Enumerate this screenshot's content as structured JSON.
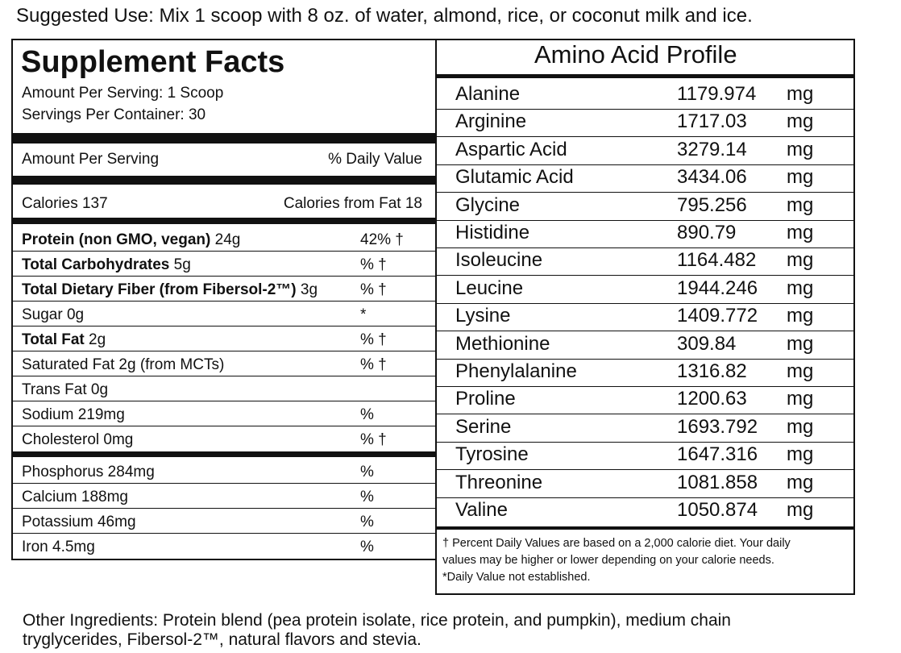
{
  "suggested_use": "Suggested Use: Mix 1 scoop with 8 oz. of water, almond, rice, or coconut milk and ice.",
  "supplement_facts": {
    "title": "Supplement Facts",
    "serving_lines": [
      "Amount Per Serving: 1 Scoop",
      "Servings Per Container: 30"
    ],
    "header": {
      "left": "Amount Per Serving",
      "right": "% Daily Value"
    },
    "calories": {
      "left": "Calories 137",
      "right": "Calories from Fat 18"
    },
    "rows": [
      {
        "bold": "Protein (non GMO, vegan)",
        "text": " 24g",
        "dv": "42% †"
      },
      {
        "bold": "Total Carbohydrates",
        "text": " 5g",
        "dv": "% †"
      },
      {
        "bold": "Total Dietary Fiber (from Fibersol-2™)",
        "text": " 3g",
        "dv": "% †"
      },
      {
        "text": "Sugar 0g",
        "dv": "*"
      },
      {
        "bold": "Total Fat",
        "text": " 2g",
        "dv": "% †"
      },
      {
        "text": "Saturated Fat 2g (from MCTs)",
        "dv": "% †"
      },
      {
        "text": "Trans Fat 0g"
      },
      {
        "text": "Sodium 219mg",
        "dv": "%"
      },
      {
        "text": "Cholesterol 0mg",
        "dv": "% †"
      }
    ],
    "minerals": [
      {
        "text": "Phosphorus 284mg",
        "dv": "%"
      },
      {
        "text": "Calcium 188mg",
        "dv": "%"
      },
      {
        "text": "Potassium 46mg",
        "dv": "%"
      },
      {
        "text": "Iron 4.5mg",
        "dv": "%"
      }
    ]
  },
  "amino_acid_profile": {
    "title": "Amino Acid Profile",
    "rows": [
      [
        "Alanine",
        "1179.974",
        "mg"
      ],
      [
        "Arginine",
        "1717.03",
        "mg"
      ],
      [
        "Aspartic Acid",
        "3279.14",
        "mg"
      ],
      [
        "Glutamic Acid",
        "3434.06",
        "mg"
      ],
      [
        "Glycine",
        "795.256",
        "mg"
      ],
      [
        "Histidine",
        "890.79",
        "mg"
      ],
      [
        "Isoleucine",
        "1164.482",
        "mg"
      ],
      [
        "Leucine",
        "1944.246",
        "mg"
      ],
      [
        "Lysine",
        "1409.772",
        "mg"
      ],
      [
        "Methionine",
        "309.84",
        "mg"
      ],
      [
        "Phenylalanine",
        "1316.82",
        "mg"
      ],
      [
        "Proline",
        "1200.63",
        "mg"
      ],
      [
        "Serine",
        "1693.792",
        "mg"
      ],
      [
        "Tyrosine",
        "1647.316",
        "mg"
      ],
      [
        "Threonine",
        "1081.858",
        "mg"
      ],
      [
        "Valine",
        "1050.874",
        "mg"
      ]
    ],
    "footnote": [
      "† Percent Daily Values are based on a 2,000 calorie diet. Your daily",
      "values may be higher or lower depending on your calorie needs.",
      "*Daily Value not established."
    ]
  },
  "other_ingredients": [
    "Other Ingredients: Protein blend (pea protein isolate, rice protein, and pumpkin), medium chain",
    "tryglycerides, Fibersol-2™, natural flavors and stevia."
  ]
}
